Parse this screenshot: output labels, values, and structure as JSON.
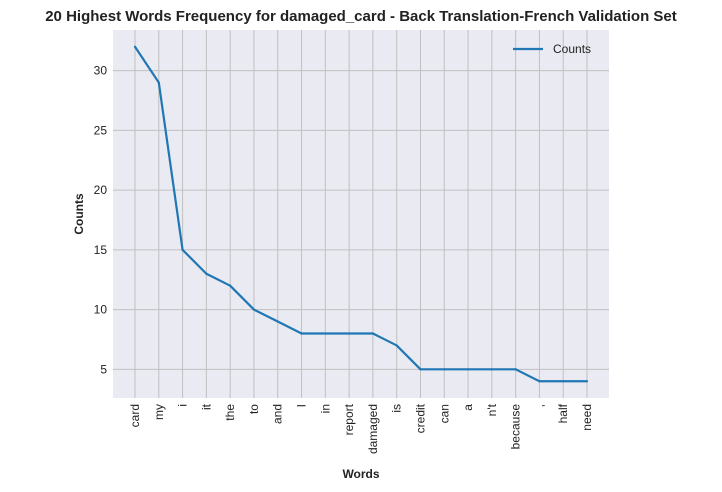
{
  "chart_data": {
    "type": "line",
    "title": "20 Highest Words Frequency for damaged_card - Back Translation-French Validation Set",
    "xlabel": "Words",
    "ylabel": "Counts",
    "categories": [
      "card",
      "my",
      "i",
      "it",
      "the",
      "to",
      "and",
      "I",
      "in",
      "report",
      "damaged",
      "is",
      "credit",
      "can",
      "a",
      "n't",
      "because",
      ",",
      "half",
      "need"
    ],
    "series": [
      {
        "name": "Counts",
        "values": [
          32,
          29,
          15,
          13,
          12,
          10,
          9,
          8,
          8,
          8,
          8,
          7,
          5,
          5,
          5,
          5,
          5,
          4,
          4,
          4
        ]
      }
    ],
    "yticks": [
      5,
      10,
      15,
      20,
      25,
      30
    ],
    "ylim": [
      2.6,
      33.4
    ],
    "grid": true,
    "legend": "top-right",
    "colors": {
      "line": "#1f77b4",
      "plot_bg": "#eaeaf2",
      "grid": "#c0c0c0"
    }
  }
}
